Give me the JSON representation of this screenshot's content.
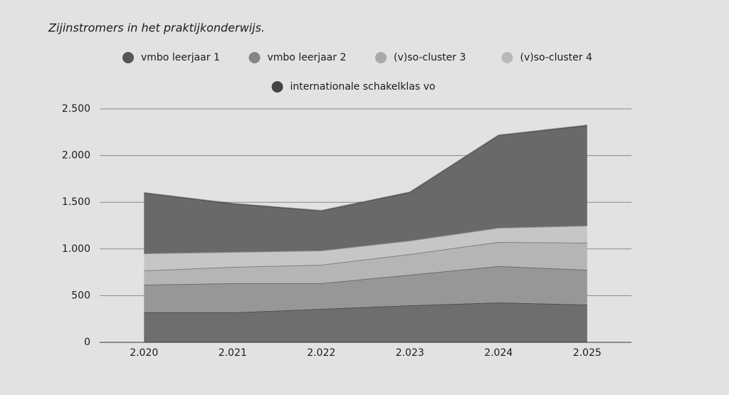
{
  "chart_data": {
    "type": "stacked-area",
    "title": "Zijinstromers in het praktijkonderwijs.",
    "categories": [
      "2.020",
      "2.021",
      "2.022",
      "2.023",
      "2.024",
      "2.025"
    ],
    "series": [
      {
        "name": "vmbo leerjaar 1",
        "color": "#6e6e6e",
        "values": [
          320,
          320,
          358,
          396,
          427,
          404
        ]
      },
      {
        "name": "vmbo leerjaar 2",
        "color": "#979797",
        "values": [
          297,
          313,
          275,
          328,
          389,
          373
        ]
      },
      {
        "name": "(v)so-cluster 3",
        "color": "#b5b5b5",
        "values": [
          153,
          175,
          198,
          221,
          259,
          290
        ]
      },
      {
        "name": "(v)so-cluster 4",
        "color": "#c6c6c6",
        "values": [
          183,
          160,
          152,
          145,
          152,
          183
        ]
      },
      {
        "name": "internationale schakelklas vo",
        "color": "#696969",
        "values": [
          648,
          518,
          427,
          518,
          991,
          1075
        ]
      }
    ],
    "legend_colors": [
      "#555555",
      "#858585",
      "#a9a9a9",
      "#b9b9b9",
      "#444444"
    ],
    "ylim": [
      0,
      2500
    ],
    "yticks": [
      0,
      500,
      {
        "value": 1000,
        "label": "1.000"
      },
      {
        "value": 1500,
        "label": "1.500"
      },
      {
        "value": 2000,
        "label": "2.000"
      },
      {
        "value": 2500,
        "label": "2.500"
      }
    ],
    "grid": true
  }
}
